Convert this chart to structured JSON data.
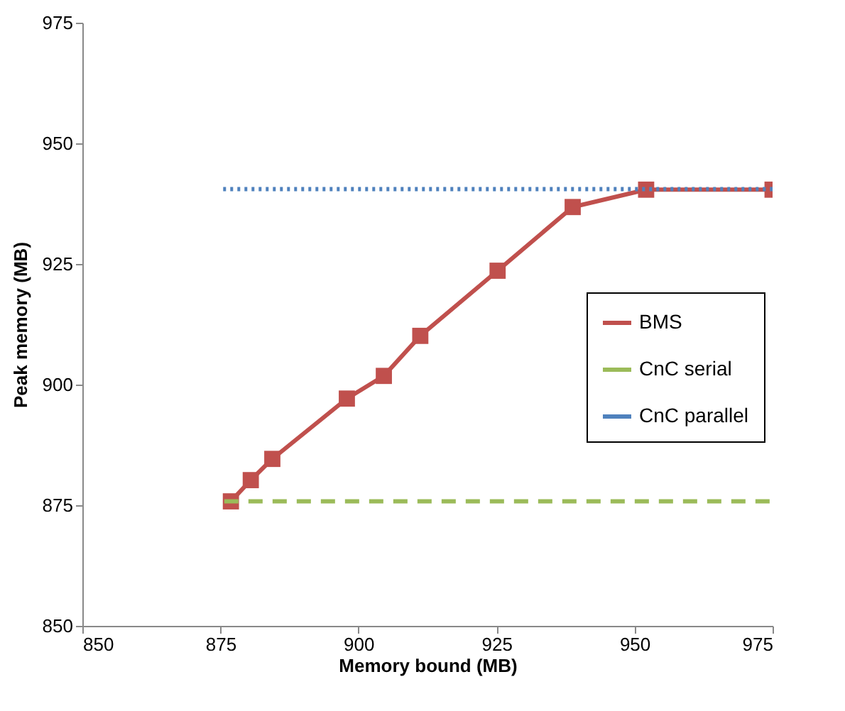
{
  "chart_data": {
    "type": "line",
    "xlabel": "Memory bound (MB)",
    "ylabel": "Peak memory (MB)",
    "xlim": [
      850,
      975
    ],
    "xticks": [
      850,
      875,
      900,
      925,
      950,
      975
    ],
    "ylim": [
      850,
      975
    ],
    "yticks": [
      850,
      875,
      900,
      925,
      950,
      975
    ],
    "grid": false,
    "legend": "right",
    "series": [
      {
        "name": "BMS",
        "color": "#c0504d",
        "marker": "square",
        "line_style": "solid",
        "x": [
          876.9,
          880.5,
          884.4,
          897.9,
          904.6,
          911.2,
          925.2,
          938.8,
          952.1,
          975
        ],
        "values": [
          875.8,
          880.2,
          884.6,
          897.1,
          901.8,
          910.1,
          923.6,
          936.8,
          940.4,
          940.4
        ]
      },
      {
        "name": "CnC serial",
        "color": "#9bbb59",
        "marker": "none",
        "line_style": "dashed",
        "x": [
          875.7,
          975
        ],
        "values": [
          875.8,
          875.8
        ]
      },
      {
        "name": "CnC parallel",
        "color": "#4f81bd",
        "marker": "none",
        "line_style": "dotted",
        "x": [
          875.5,
          975
        ],
        "values": [
          940.5,
          940.5
        ]
      }
    ]
  }
}
